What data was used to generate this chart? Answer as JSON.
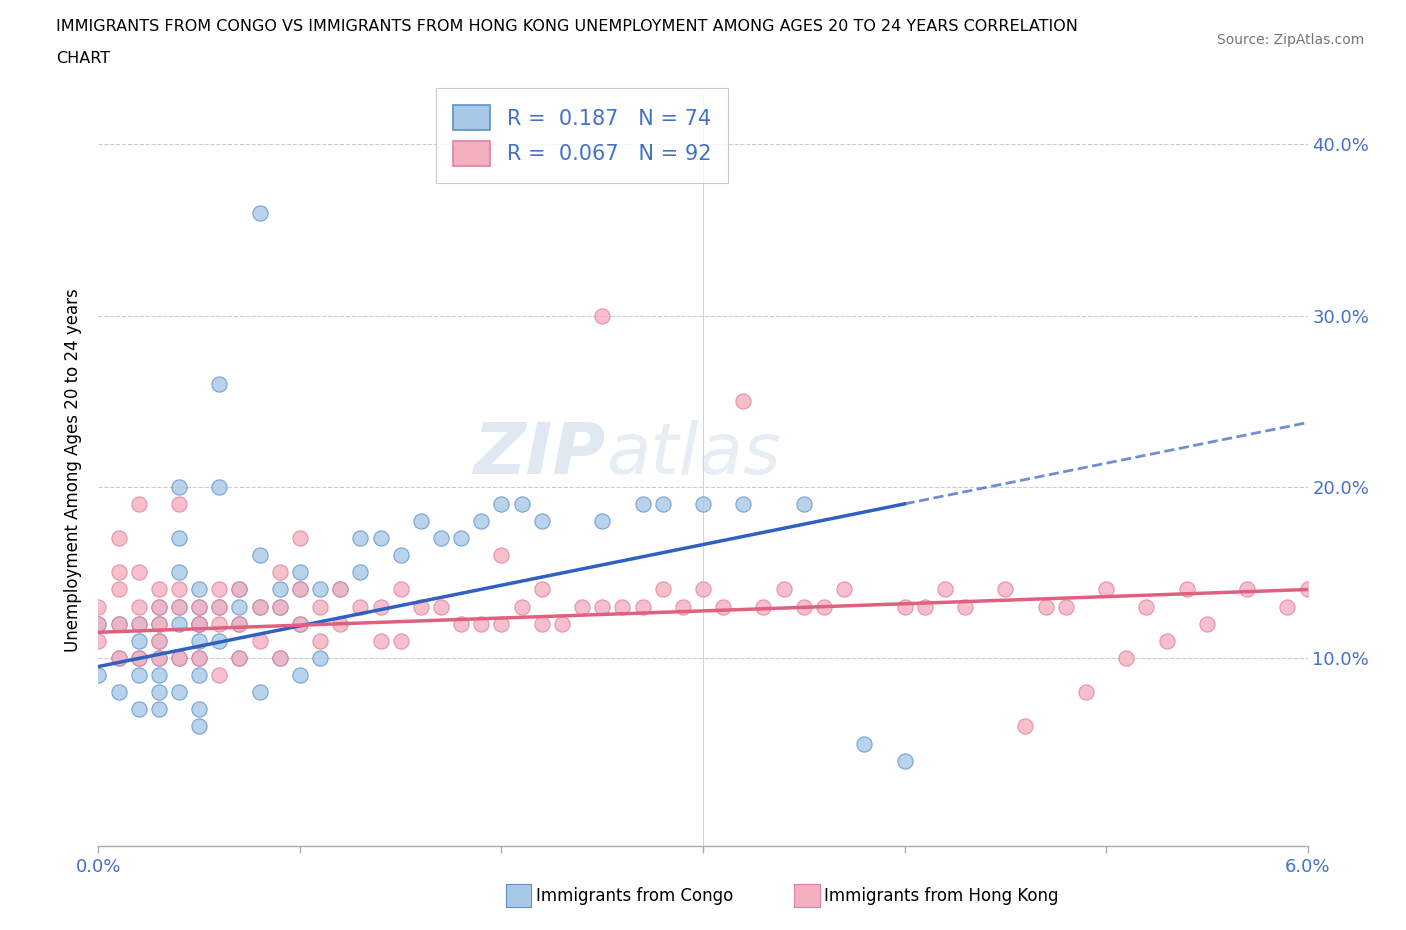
{
  "title_line1": "IMMIGRANTS FROM CONGO VS IMMIGRANTS FROM HONG KONG UNEMPLOYMENT AMONG AGES 20 TO 24 YEARS CORRELATION",
  "title_line2": "CHART",
  "source": "Source: ZipAtlas.com",
  "ylabel": "Unemployment Among Ages 20 to 24 years",
  "xlim": [
    0.0,
    0.06
  ],
  "ylim": [
    -0.01,
    0.43
  ],
  "yticks": [
    0.0,
    0.1,
    0.2,
    0.3,
    0.4
  ],
  "ytick_labels": [
    "",
    "10.0%",
    "20.0%",
    "30.0%",
    "40.0%"
  ],
  "xticks": [
    0.0,
    0.01,
    0.02,
    0.03,
    0.04,
    0.05,
    0.06
  ],
  "xtick_labels": [
    "0.0%",
    "",
    "",
    "",
    "",
    "",
    "6.0%"
  ],
  "congo_color": "#a8c8e8",
  "hk_color": "#f5b0c0",
  "trend_congo_color": "#3060c0",
  "trend_hk_color": "#e06080",
  "R_congo": 0.187,
  "N_congo": 74,
  "R_hk": 0.067,
  "N_hk": 92,
  "congo_trend_x0": 0.0,
  "congo_trend_y0": 0.095,
  "congo_trend_x1": 0.04,
  "congo_trend_y1": 0.19,
  "hk_trend_x0": 0.0,
  "hk_trend_y0": 0.115,
  "hk_trend_x1": 0.06,
  "hk_trend_y1": 0.14,
  "congo_x": [
    0.0,
    0.0,
    0.001,
    0.001,
    0.001,
    0.002,
    0.002,
    0.002,
    0.002,
    0.002,
    0.003,
    0.003,
    0.003,
    0.003,
    0.003,
    0.003,
    0.003,
    0.004,
    0.004,
    0.004,
    0.004,
    0.004,
    0.004,
    0.004,
    0.005,
    0.005,
    0.005,
    0.005,
    0.005,
    0.005,
    0.005,
    0.005,
    0.005,
    0.006,
    0.006,
    0.006,
    0.006,
    0.007,
    0.007,
    0.007,
    0.007,
    0.008,
    0.008,
    0.008,
    0.008,
    0.009,
    0.009,
    0.009,
    0.01,
    0.01,
    0.01,
    0.01,
    0.011,
    0.011,
    0.012,
    0.013,
    0.013,
    0.014,
    0.015,
    0.016,
    0.017,
    0.018,
    0.019,
    0.02,
    0.021,
    0.022,
    0.025,
    0.027,
    0.028,
    0.03,
    0.032,
    0.035,
    0.038,
    0.04
  ],
  "congo_y": [
    0.12,
    0.09,
    0.12,
    0.1,
    0.08,
    0.12,
    0.11,
    0.1,
    0.09,
    0.07,
    0.13,
    0.12,
    0.11,
    0.1,
    0.09,
    0.08,
    0.07,
    0.2,
    0.17,
    0.15,
    0.13,
    0.12,
    0.1,
    0.08,
    0.14,
    0.13,
    0.12,
    0.12,
    0.11,
    0.1,
    0.09,
    0.07,
    0.06,
    0.26,
    0.2,
    0.13,
    0.11,
    0.14,
    0.13,
    0.12,
    0.1,
    0.36,
    0.16,
    0.13,
    0.08,
    0.14,
    0.13,
    0.1,
    0.15,
    0.14,
    0.12,
    0.09,
    0.14,
    0.1,
    0.14,
    0.17,
    0.15,
    0.17,
    0.16,
    0.18,
    0.17,
    0.17,
    0.18,
    0.19,
    0.19,
    0.18,
    0.18,
    0.19,
    0.19,
    0.19,
    0.19,
    0.19,
    0.05,
    0.04
  ],
  "hk_x": [
    0.0,
    0.0,
    0.0,
    0.001,
    0.001,
    0.001,
    0.001,
    0.001,
    0.002,
    0.002,
    0.002,
    0.002,
    0.002,
    0.003,
    0.003,
    0.003,
    0.003,
    0.003,
    0.004,
    0.004,
    0.004,
    0.004,
    0.005,
    0.005,
    0.005,
    0.006,
    0.006,
    0.006,
    0.006,
    0.007,
    0.007,
    0.007,
    0.008,
    0.008,
    0.009,
    0.009,
    0.009,
    0.01,
    0.01,
    0.01,
    0.011,
    0.011,
    0.012,
    0.012,
    0.013,
    0.014,
    0.014,
    0.015,
    0.015,
    0.016,
    0.017,
    0.018,
    0.019,
    0.02,
    0.02,
    0.021,
    0.022,
    0.022,
    0.023,
    0.024,
    0.025,
    0.025,
    0.026,
    0.027,
    0.028,
    0.029,
    0.03,
    0.031,
    0.032,
    0.033,
    0.034,
    0.035,
    0.036,
    0.037,
    0.04,
    0.041,
    0.042,
    0.043,
    0.045,
    0.047,
    0.048,
    0.05,
    0.052,
    0.054,
    0.057,
    0.059,
    0.046,
    0.049,
    0.051,
    0.053,
    0.055,
    0.06
  ],
  "hk_y": [
    0.13,
    0.12,
    0.11,
    0.17,
    0.15,
    0.14,
    0.12,
    0.1,
    0.19,
    0.15,
    0.13,
    0.12,
    0.1,
    0.14,
    0.13,
    0.12,
    0.11,
    0.1,
    0.19,
    0.14,
    0.13,
    0.1,
    0.13,
    0.12,
    0.1,
    0.14,
    0.13,
    0.12,
    0.09,
    0.14,
    0.12,
    0.1,
    0.13,
    0.11,
    0.15,
    0.13,
    0.1,
    0.17,
    0.14,
    0.12,
    0.13,
    0.11,
    0.14,
    0.12,
    0.13,
    0.13,
    0.11,
    0.14,
    0.11,
    0.13,
    0.13,
    0.12,
    0.12,
    0.16,
    0.12,
    0.13,
    0.14,
    0.12,
    0.12,
    0.13,
    0.3,
    0.13,
    0.13,
    0.13,
    0.14,
    0.13,
    0.14,
    0.13,
    0.25,
    0.13,
    0.14,
    0.13,
    0.13,
    0.14,
    0.13,
    0.13,
    0.14,
    0.13,
    0.14,
    0.13,
    0.13,
    0.14,
    0.13,
    0.14,
    0.14,
    0.13,
    0.06,
    0.08,
    0.1,
    0.11,
    0.12,
    0.14
  ]
}
